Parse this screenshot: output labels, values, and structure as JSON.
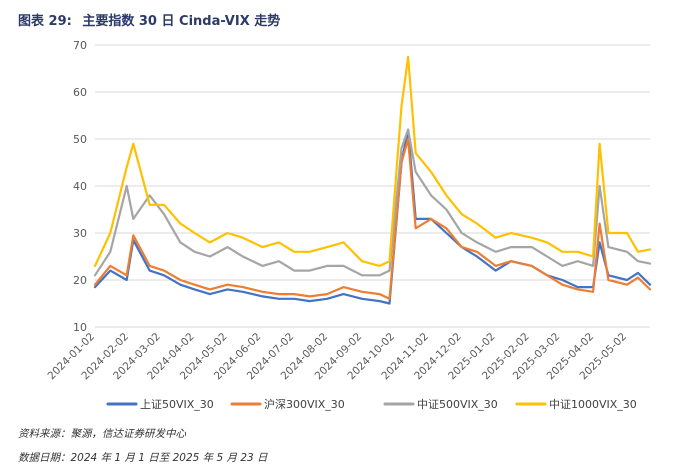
{
  "figure": {
    "label": "图表 29:",
    "title": "主要指数 30 日 Cinda-VIX 走势"
  },
  "footer": {
    "source": "资料来源：聚源，信达证券研发中心",
    "date_range": "数据日期：2024 年 1 月 1 日至 2025 年 5 月 23 日"
  },
  "chart_data": {
    "type": "line",
    "title": "主要指数 30 日 Cinda-VIX 走势",
    "xlabel": "",
    "ylabel": "",
    "ylim": [
      10,
      70
    ],
    "yticks": [
      10,
      20,
      30,
      40,
      50,
      60,
      70
    ],
    "grid": true,
    "legend_position": "bottom",
    "x_start": "2024-01-02",
    "x_end": "2025-05-23",
    "x": [
      "2024-01-02",
      "2024-01-16",
      "2024-01-31",
      "2024-02-06",
      "2024-02-21",
      "2024-03-05",
      "2024-03-20",
      "2024-04-02",
      "2024-04-16",
      "2024-05-02",
      "2024-05-16",
      "2024-06-03",
      "2024-06-18",
      "2024-07-02",
      "2024-07-16",
      "2024-08-01",
      "2024-08-16",
      "2024-09-02",
      "2024-09-18",
      "2024-09-27",
      "2024-10-08",
      "2024-10-14",
      "2024-10-21",
      "2024-11-04",
      "2024-11-18",
      "2024-12-02",
      "2024-12-16",
      "2025-01-02",
      "2025-01-16",
      "2025-02-04",
      "2025-02-18",
      "2025-03-04",
      "2025-03-18",
      "2025-04-01",
      "2025-04-07",
      "2025-04-15",
      "2025-05-02",
      "2025-05-12",
      "2025-05-23"
    ],
    "xticks": [
      "2024-01-02",
      "2024-02-02",
      "2024-03-02",
      "2024-04-02",
      "2024-05-02",
      "2024-06-02",
      "2024-07-02",
      "2024-08-02",
      "2024-09-02",
      "2024-10-02",
      "2024-11-02",
      "2024-12-02",
      "2025-01-02",
      "2025-02-02",
      "2025-03-02",
      "2025-04-02",
      "2025-05-02"
    ],
    "series": [
      {
        "name": "上证50VIX_30",
        "color": "#4472c4",
        "values": [
          18.5,
          22,
          20,
          28.5,
          22,
          21,
          19,
          18,
          17,
          18,
          17.5,
          16.5,
          16,
          16,
          15.5,
          16,
          17,
          16,
          15.5,
          15,
          45,
          52,
          33,
          33,
          30,
          27,
          25,
          22,
          24,
          23,
          21,
          20,
          18.5,
          18.5,
          28,
          21,
          20,
          21.5,
          19
        ]
      },
      {
        "name": "沪深300VIX_30",
        "color": "#ed7d31",
        "values": [
          19,
          23,
          21,
          29.5,
          23,
          22,
          20,
          19,
          18,
          19,
          18.5,
          17.5,
          17,
          17,
          16.5,
          17,
          18.5,
          17.5,
          17,
          16,
          45,
          50,
          31,
          33,
          31,
          27,
          26,
          23,
          24,
          23,
          21,
          19,
          18,
          17.5,
          32,
          20,
          19,
          20.5,
          18
        ]
      },
      {
        "name": "中证500VIX_30",
        "color": "#a5a5a5",
        "values": [
          21,
          26,
          40,
          33,
          38,
          34,
          28,
          26,
          25,
          27,
          25,
          23,
          24,
          22,
          22,
          23,
          23,
          21,
          21,
          22,
          48,
          52,
          43,
          38,
          35,
          30,
          28,
          26,
          27,
          27,
          25,
          23,
          24,
          23,
          40,
          27,
          26,
          24,
          23.5
        ]
      },
      {
        "name": "中证1000VIX_30",
        "color": "#ffc000",
        "values": [
          23,
          30,
          44,
          49,
          36,
          36,
          32,
          30,
          28,
          30,
          29,
          27,
          28,
          26,
          26,
          27,
          28,
          24,
          23,
          24,
          57,
          67.5,
          47,
          43,
          38,
          34,
          32,
          29,
          30,
          29,
          28,
          26,
          26,
          25,
          49,
          30,
          30,
          26,
          26.5
        ]
      }
    ]
  }
}
